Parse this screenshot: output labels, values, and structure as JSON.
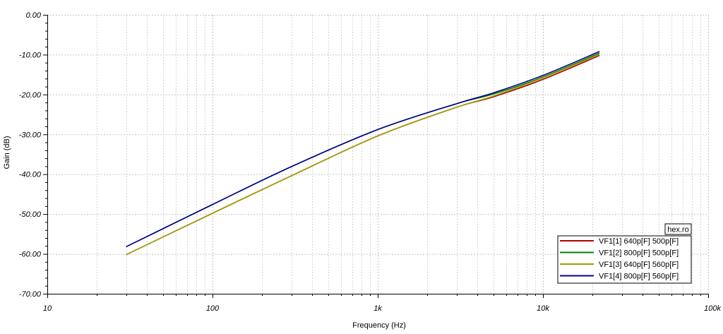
{
  "chart_data": {
    "type": "line",
    "xlabel": "Frequency (Hz)",
    "ylabel": "Gain (dB)",
    "x_scale": "log",
    "xlim": [
      10,
      100000
    ],
    "ylim": [
      -70,
      0
    ],
    "x_ticks": [
      {
        "value": 10,
        "label": "10"
      },
      {
        "value": 100,
        "label": "100"
      },
      {
        "value": 1000,
        "label": "1k"
      },
      {
        "value": 10000,
        "label": "10k"
      },
      {
        "value": 100000,
        "label": "100k"
      }
    ],
    "y_ticks": [
      {
        "value": 0,
        "label": "0.00"
      },
      {
        "value": -10,
        "label": "-10.00"
      },
      {
        "value": -20,
        "label": "-20.00"
      },
      {
        "value": -30,
        "label": "-30.00"
      },
      {
        "value": -40,
        "label": "-40.00"
      },
      {
        "value": -50,
        "label": "-50.00"
      },
      {
        "value": -60,
        "label": "-60.00"
      },
      {
        "value": -70,
        "label": "-70.00"
      }
    ],
    "grid": true,
    "legend_position": "bottom-right",
    "watermark": "hex.ro",
    "series": [
      {
        "name": "VF1[1]  640p[F] 500p[F]",
        "color": "#b00000",
        "x": [
          30,
          100,
          300,
          1000,
          3000,
          5000,
          10000,
          22000
        ],
        "y": [
          -60.2,
          -49.8,
          -40.4,
          -30.4,
          -23.2,
          -20.6,
          -16.2,
          -10.2
        ]
      },
      {
        "name": "VF1[2]  800p[F] 500p[F]",
        "color": "#008000",
        "x": [
          30,
          100,
          300,
          1000,
          3000,
          5000,
          10000,
          22000
        ],
        "y": [
          -58.2,
          -47.6,
          -38.1,
          -28.8,
          -22.3,
          -19.9,
          -15.6,
          -9.6
        ]
      },
      {
        "name": "VF1[3]  640p[F] 560p[F]",
        "color": "#a0a000",
        "x": [
          30,
          100,
          300,
          1000,
          3000,
          5000,
          10000,
          22000
        ],
        "y": [
          -60.2,
          -49.8,
          -40.4,
          -30.4,
          -23.2,
          -20.4,
          -15.8,
          -9.9
        ]
      },
      {
        "name": "VF1[4]  800p[F] 560p[F]",
        "color": "#000090",
        "x": [
          30,
          100,
          300,
          1000,
          3000,
          5000,
          10000,
          22000
        ],
        "y": [
          -58.2,
          -47.6,
          -38.1,
          -28.8,
          -22.3,
          -19.6,
          -15.2,
          -9.2
        ]
      }
    ]
  }
}
